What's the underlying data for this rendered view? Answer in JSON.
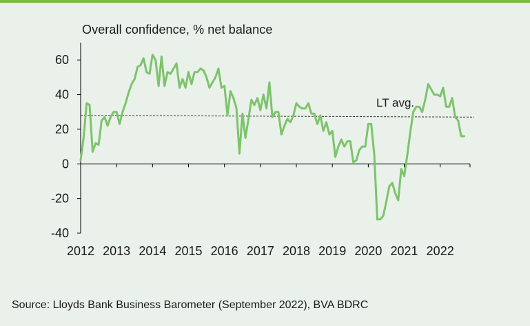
{
  "chart_data": {
    "type": "line",
    "title": "Overall confidence, % net balance",
    "xlabel": "",
    "ylabel": "",
    "source": "Source: Lloyds Bank Business Barometer (September 2022), BVA BDRC",
    "ylim": [
      -40,
      70
    ],
    "yticks": [
      60,
      40,
      20,
      0,
      -20,
      -40
    ],
    "ytick_labels": [
      "60",
      "40",
      "20",
      "0",
      "-20",
      "-40"
    ],
    "xlim": [
      2012.0,
      2022.83
    ],
    "xticks": [
      2012,
      2013,
      2014,
      2015,
      2016,
      2017,
      2018,
      2019,
      2020,
      2021,
      2022
    ],
    "xtick_labels": [
      "2012",
      "2013",
      "2014",
      "2015",
      "2016",
      "2017",
      "2018",
      "2019",
      "2020",
      "2021",
      "2022"
    ],
    "reference_line": {
      "label": "LT avg.",
      "start": 28,
      "end": 27
    },
    "series": [
      {
        "name": "Overall confidence",
        "color": "#7dc36b",
        "x": [
          2012.0,
          2012.083,
          2012.167,
          2012.25,
          2012.333,
          2012.417,
          2012.5,
          2012.583,
          2012.667,
          2012.75,
          2012.833,
          2012.917,
          2013.0,
          2013.083,
          2013.167,
          2013.25,
          2013.333,
          2013.417,
          2013.5,
          2013.583,
          2013.667,
          2013.75,
          2013.833,
          2013.917,
          2014.0,
          2014.083,
          2014.167,
          2014.25,
          2014.333,
          2014.417,
          2014.5,
          2014.583,
          2014.667,
          2014.75,
          2014.833,
          2014.917,
          2015.0,
          2015.083,
          2015.167,
          2015.25,
          2015.333,
          2015.417,
          2015.5,
          2015.583,
          2015.667,
          2015.75,
          2015.833,
          2015.917,
          2016.0,
          2016.083,
          2016.167,
          2016.25,
          2016.333,
          2016.417,
          2016.5,
          2016.583,
          2016.667,
          2016.75,
          2016.833,
          2016.917,
          2017.0,
          2017.083,
          2017.167,
          2017.25,
          2017.333,
          2017.417,
          2017.5,
          2017.583,
          2017.667,
          2017.75,
          2017.833,
          2017.917,
          2018.0,
          2018.083,
          2018.167,
          2018.25,
          2018.333,
          2018.417,
          2018.5,
          2018.583,
          2018.667,
          2018.75,
          2018.833,
          2018.917,
          2019.0,
          2019.083,
          2019.167,
          2019.25,
          2019.333,
          2019.417,
          2019.5,
          2019.583,
          2019.667,
          2019.75,
          2019.833,
          2019.917,
          2020.0,
          2020.083,
          2020.167,
          2020.25,
          2020.333,
          2020.417,
          2020.5,
          2020.583,
          2020.667,
          2020.75,
          2020.833,
          2020.917,
          2021.0,
          2021.083,
          2021.167,
          2021.25,
          2021.333,
          2021.417,
          2021.5,
          2021.583,
          2021.667,
          2021.75,
          2021.833,
          2021.917,
          2022.0,
          2022.083,
          2022.167,
          2022.25,
          2022.333,
          2022.417,
          2022.5,
          2022.583,
          2022.667
        ],
        "values": [
          2,
          15,
          35,
          34,
          7,
          12,
          11,
          25,
          27,
          22,
          27,
          30,
          30,
          23,
          30,
          35,
          41,
          46,
          49,
          56,
          57,
          61,
          53,
          52,
          63,
          60,
          45,
          62,
          45,
          53,
          52,
          55,
          58,
          44,
          49,
          44,
          53,
          46,
          53,
          53,
          55,
          54,
          50,
          44,
          47,
          50,
          55,
          44,
          45,
          28,
          42,
          38,
          32,
          6,
          29,
          15,
          26,
          37,
          34,
          38,
          31,
          40,
          32,
          47,
          27,
          30,
          30,
          17,
          22,
          26,
          24,
          28,
          35,
          33,
          32,
          32,
          35,
          29,
          29,
          23,
          28,
          19,
          24,
          17,
          19,
          4,
          10,
          14,
          10,
          13,
          13,
          1,
          2,
          8,
          10,
          10,
          23,
          23,
          5,
          -32,
          -32,
          -30,
          -22,
          -13,
          -11,
          -17,
          -21,
          -3,
          -7,
          5,
          18,
          30,
          33,
          33,
          30,
          37,
          46,
          43,
          40,
          40,
          39,
          44,
          33,
          33,
          38,
          27,
          25,
          16,
          16
        ]
      }
    ]
  }
}
